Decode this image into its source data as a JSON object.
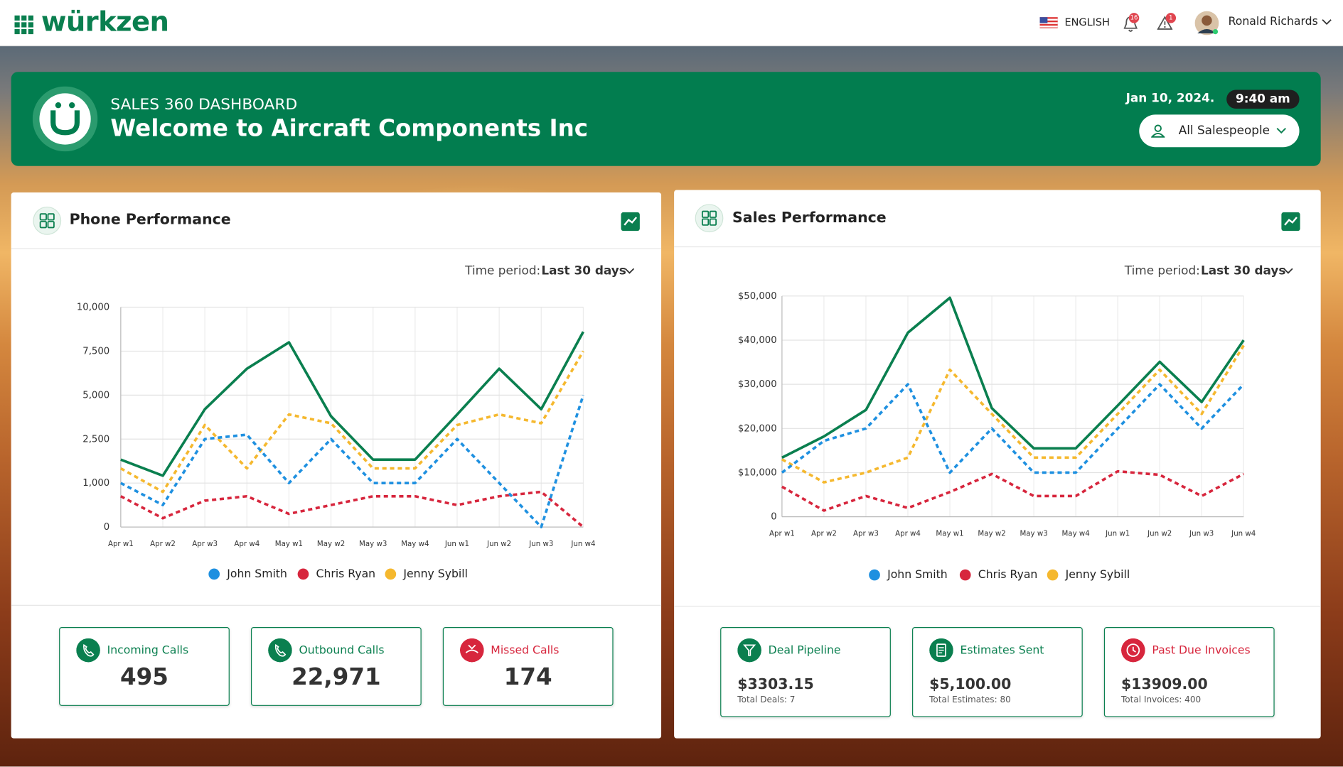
{
  "header": {
    "logo": "würkzen",
    "language": "ENGLISH",
    "notifications": "16",
    "alerts": "1",
    "user": "Ronald Richards"
  },
  "banner": {
    "subtitle": "SALES 360 DASHBOARD",
    "title": "Welcome to Aircraft Components Inc",
    "date": "Jan 10, 2024.",
    "time": "9:40 am",
    "filter": "All Salespeople"
  },
  "panels": [
    {
      "title": "Phone Performance",
      "period_label": "Time period:",
      "period": "Last 30 days",
      "cards": [
        {
          "title": "Incoming Calls",
          "value": "495"
        },
        {
          "title": "Outbound Calls",
          "value": "22,971"
        },
        {
          "title": "Missed Calls",
          "value": "174"
        }
      ]
    },
    {
      "title": "Sales Performance",
      "period_label": "Time period:",
      "period": "Last 30 days",
      "cards": [
        {
          "title": "Deal Pipeline",
          "value": "$3303.15",
          "note": "Total Deals: 7"
        },
        {
          "title": "Estimates Sent",
          "value": "$5,100.00",
          "note": "Total Estimates: 80"
        },
        {
          "title": "Past Due Invoices",
          "value": "$13909.00",
          "note": "Total Invoices: 400"
        }
      ]
    }
  ],
  "chart_data": [
    {
      "type": "line",
      "grid": true,
      "categories": [
        "Apr w1",
        "Apr w2",
        "Apr w3",
        "Apr w4",
        "May w1",
        "May w2",
        "May w3",
        "May w4",
        "Jun w1",
        "Jun w2",
        "Jun w3",
        "Jun w4"
      ],
      "ylim": [
        0,
        10000
      ],
      "yticks": [
        0,
        {
          "value": 1000,
          "label": "1,000"
        },
        {
          "value": 2500,
          "label": "2,500"
        },
        {
          "value": 5000,
          "label": "5,000"
        },
        {
          "value": 7500,
          "label": "7,500"
        },
        {
          "value": 10000,
          "label": "10,000"
        }
      ],
      "series": [
        {
          "color": "#0a7f4f",
          "line_style": "solid",
          "values": [
            1800,
            1250,
            4200,
            6500,
            8000,
            3800,
            1800,
            1800,
            3900,
            6500,
            4200,
            8600
          ]
        },
        {
          "name": "John Smith",
          "color": "#1e90e0",
          "line_style": "dashed",
          "values": [
            1000,
            500,
            2500,
            2750,
            1000,
            2500,
            1000,
            1000,
            2500,
            1000,
            0,
            5000
          ]
        },
        {
          "name": "Chris Ryan",
          "color": "#d7263d",
          "line_style": "dashed",
          "values": [
            700,
            200,
            600,
            700,
            300,
            500,
            700,
            700,
            500,
            700,
            800,
            0
          ]
        },
        {
          "name": "Jenny Sybill",
          "color": "#f5b82e",
          "line_style": "dashed",
          "values": [
            1500,
            800,
            3300,
            1500,
            3900,
            3400,
            1500,
            1500,
            3300,
            3900,
            3400,
            7500
          ]
        }
      ]
    },
    {
      "type": "line",
      "grid": true,
      "categories": [
        "Apr w1",
        "Apr w2",
        "Apr w3",
        "Apr w4",
        "May w1",
        "May w2",
        "May w3",
        "May w4",
        "Jun w1",
        "Jun w2",
        "Jun w3",
        "Jun w4"
      ],
      "ylim": [
        0,
        50000
      ],
      "yticks": [
        0,
        {
          "value": 10000,
          "label": "$10,000"
        },
        {
          "value": 20000,
          "label": "$20,000"
        },
        {
          "value": 30000,
          "label": "$30,000"
        },
        {
          "value": 40000,
          "label": "$40,000"
        },
        {
          "value": 50000,
          "label": "$50,000"
        }
      ],
      "series": [
        {
          "color": "#0a7f4f",
          "line_style": "solid",
          "values": [
            13400,
            18200,
            24200,
            41700,
            49600,
            24600,
            15500,
            15500,
            25200,
            35100,
            26000,
            40000
          ]
        },
        {
          "name": "John Smith",
          "color": "#1e90e0",
          "line_style": "dashed",
          "values": [
            10000,
            17200,
            20000,
            30000,
            10000,
            20000,
            10000,
            10000,
            20000,
            30000,
            20000,
            30000
          ]
        },
        {
          "name": "Chris Ryan",
          "color": "#d7263d",
          "line_style": "dashed",
          "values": [
            6800,
            1400,
            4700,
            2000,
            5600,
            9700,
            4700,
            4700,
            10300,
            9500,
            4700,
            9700
          ]
        },
        {
          "name": "Jenny Sybill",
          "color": "#f5b82e",
          "line_style": "dashed",
          "values": [
            13000,
            7800,
            10000,
            13400,
            33300,
            23300,
            13400,
            13400,
            23300,
            33300,
            23300,
            38800
          ]
        }
      ]
    }
  ]
}
